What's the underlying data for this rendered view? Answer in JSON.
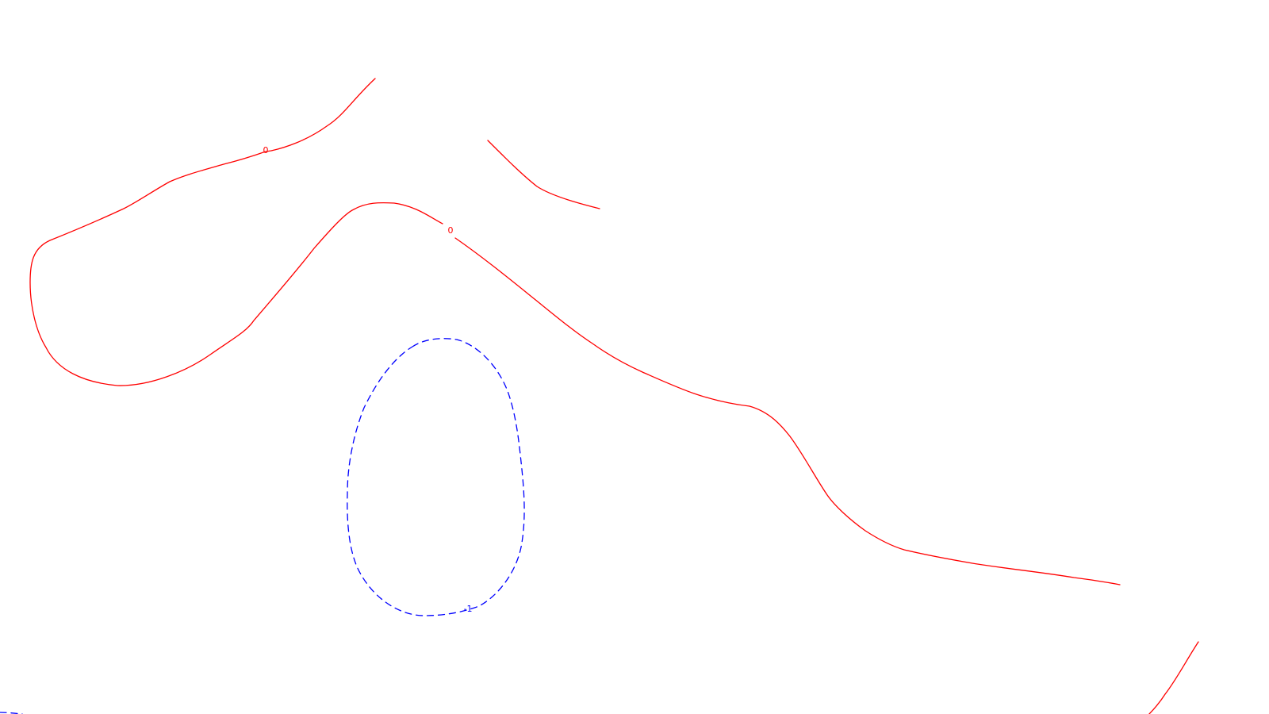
{
  "contours": {
    "colors": {
      "zero": "#ff0000",
      "negative": "#0000ff"
    },
    "labels": {
      "upper_zero": "0",
      "middle_zero": "0",
      "negative_one": "-1"
    }
  }
}
